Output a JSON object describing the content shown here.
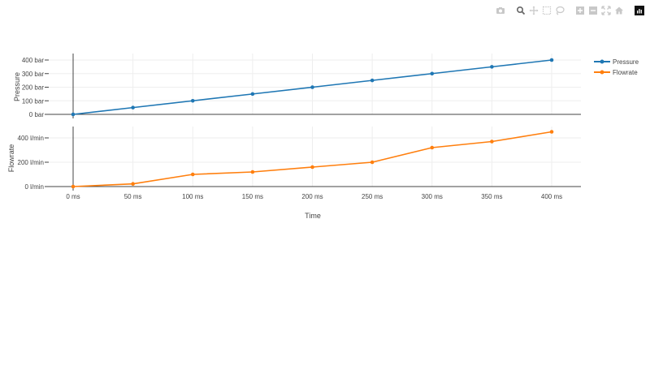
{
  "modebar": {
    "buttons": [
      {
        "name": "camera-icon",
        "label": "Download plot as a png"
      },
      {
        "name": "zoom-icon",
        "label": "Zoom"
      },
      {
        "name": "pan-icon",
        "label": "Pan"
      },
      {
        "name": "box-select-icon",
        "label": "Box Select"
      },
      {
        "name": "lasso-select-icon",
        "label": "Lasso Select"
      },
      {
        "name": "zoom-in-icon",
        "label": "Zoom in"
      },
      {
        "name": "zoom-out-icon",
        "label": "Zoom out"
      },
      {
        "name": "autoscale-icon",
        "label": "Autoscale"
      },
      {
        "name": "reset-axes-icon",
        "label": "Reset axes"
      },
      {
        "name": "plotly-logo-icon",
        "label": "Produced with Plotly"
      }
    ]
  },
  "colors": {
    "pressure": "#1f77b4",
    "flowrate": "#ff7f0e",
    "grid": "#eeeeee",
    "zeroline": "#444444"
  },
  "chart_data": {
    "type": "line",
    "x": [
      0,
      50,
      100,
      150,
      200,
      250,
      300,
      350,
      400
    ],
    "x_tick_labels": [
      "0 ms",
      "50 ms",
      "100 ms",
      "150 ms",
      "200 ms",
      "250 ms",
      "300 ms",
      "350 ms",
      "400 ms"
    ],
    "xlabel": "Time",
    "xlim": [
      -10,
      430
    ],
    "subplots": [
      {
        "ylabel": "Pressure",
        "y_tick_values": [
          0,
          100,
          200,
          300,
          400
        ],
        "y_tick_labels": [
          "0 bar",
          "100 bar",
          "200 bar",
          "300 bar",
          "400 bar"
        ],
        "ylim": [
          0,
          440
        ],
        "series": [
          {
            "name": "Pressure",
            "values": [
              0,
              50,
              100,
              150,
              200,
              250,
              300,
              350,
              400
            ],
            "color": "#1f77b4"
          }
        ]
      },
      {
        "ylabel": "Flowrate",
        "y_tick_values": [
          0,
          200,
          400
        ],
        "y_tick_labels": [
          "0 l/min",
          "200 l/min",
          "400 l/min"
        ],
        "ylim": [
          0,
          490
        ],
        "series": [
          {
            "name": "Flowrate",
            "values": [
              0,
              22,
              100,
              120,
              160,
              200,
              320,
              370,
              450
            ],
            "color": "#ff7f0e"
          }
        ]
      }
    ],
    "legend": {
      "entries": [
        "Pressure",
        "Flowrate"
      ],
      "position": "top-right"
    },
    "grid": true
  }
}
